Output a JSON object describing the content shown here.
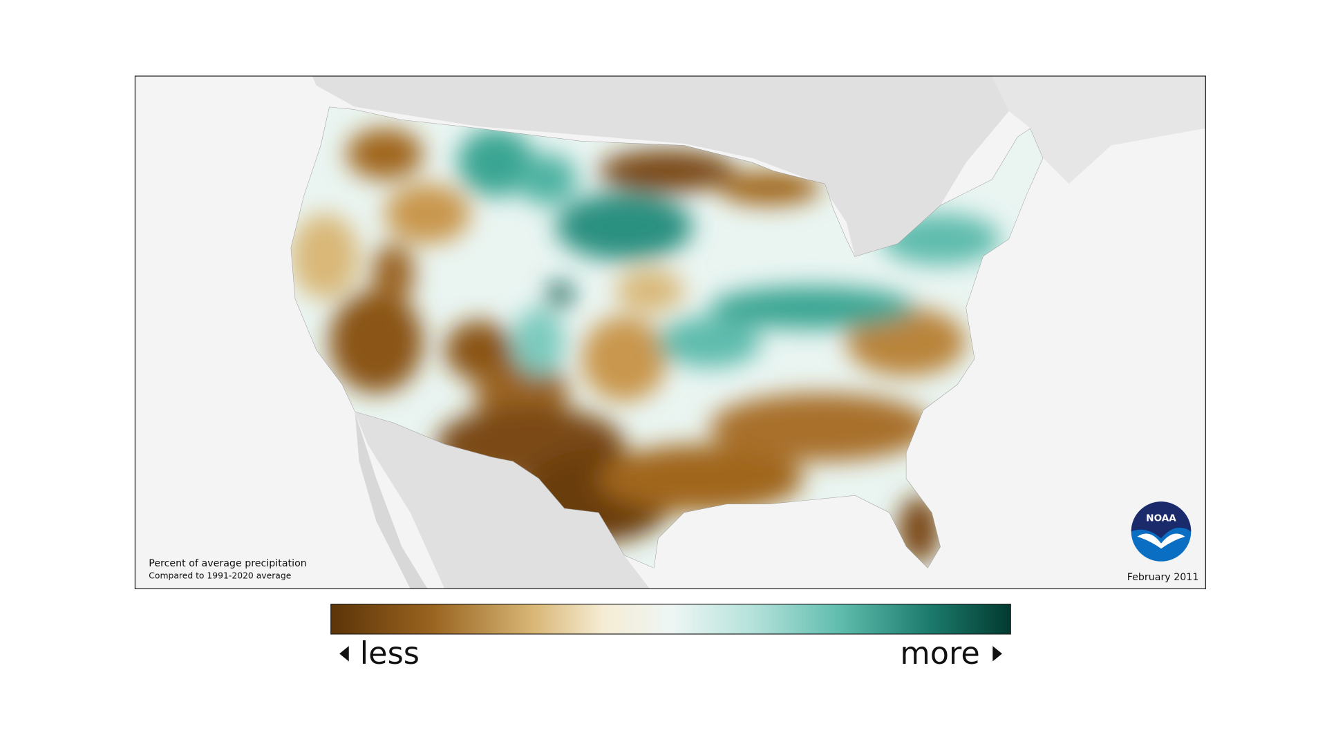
{
  "map": {
    "caption": {
      "title": "Percent of average precipitation",
      "subtitle": "Compared to 1991-2020 average"
    },
    "date": "February 2011",
    "logo": "NOAA",
    "legend": {
      "low": "less",
      "high": "more"
    }
  }
}
